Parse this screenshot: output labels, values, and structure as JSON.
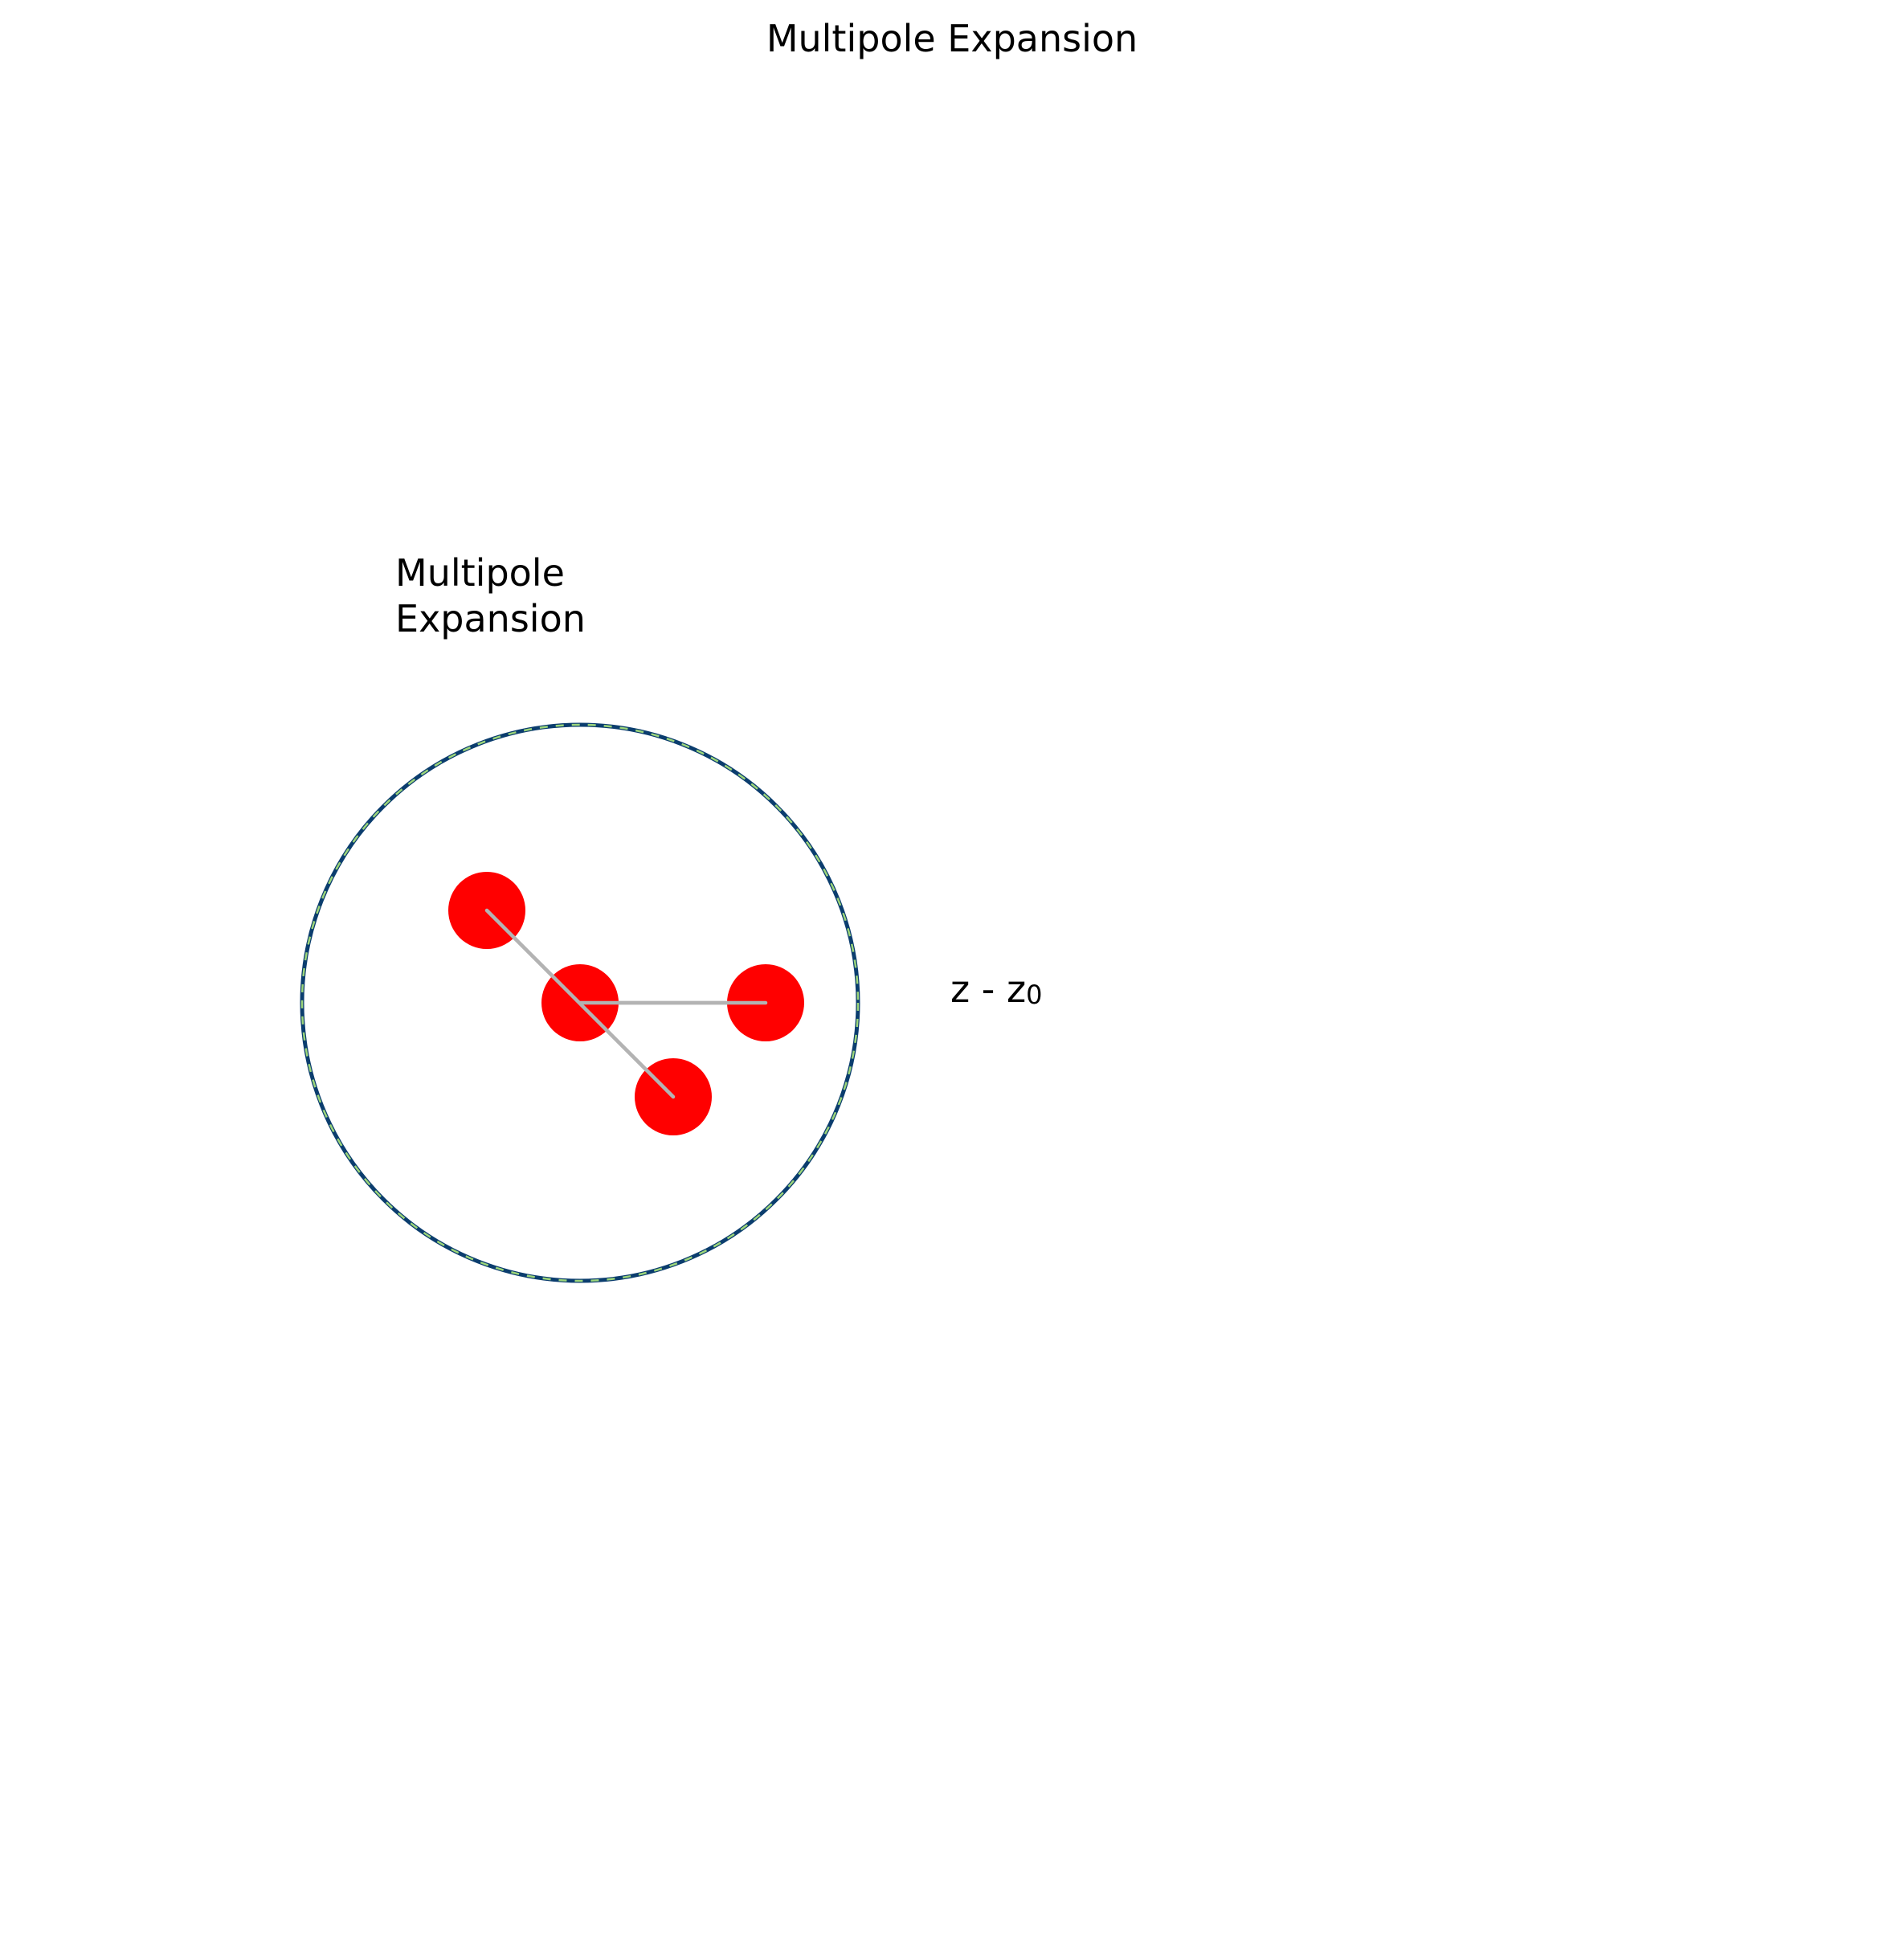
{
  "title": "Multipole Expansion",
  "region_label": {
    "line1": "Multipole",
    "line2": "Expansion"
  },
  "vector_label": {
    "main": "z - z",
    "subscript": "0"
  },
  "colors": {
    "charge": "#ff0000",
    "connector": "#b3b3b3",
    "boundary_outer": "#0b3d6e",
    "boundary_dash": "#9cd57a",
    "text": "#000000",
    "background": "#ffffff"
  }
}
